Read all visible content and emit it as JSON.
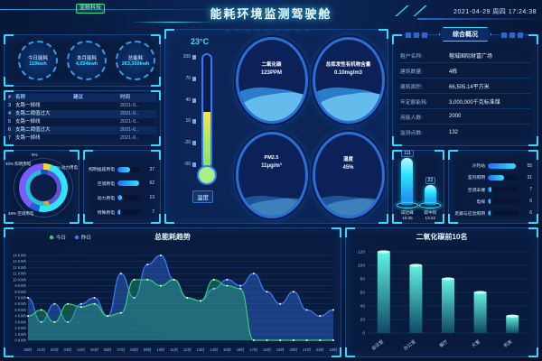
{
  "header": {
    "badge": "蓝鲸科技",
    "title": "能耗环境监测驾驶舱",
    "datetime": "2021-04-29 周四 17:24:38"
  },
  "colors": {
    "accent": "#2ee5ff",
    "green": "#2fd36a",
    "blue": "#3f7bff",
    "yellow": "#f2d62c",
    "purple": "#7b5bff",
    "panel_border": "#16437f",
    "background": "#081a3f"
  },
  "stats": {
    "items": [
      {
        "label": "今日能耗",
        "value": "119kwh"
      },
      {
        "label": "本月能耗",
        "value": "4,654kwh"
      },
      {
        "label": "总能耗",
        "value": "263,359kwh"
      }
    ]
  },
  "alarm_table": {
    "columns": [
      "#",
      "名称",
      "建议",
      "时间"
    ],
    "rows": [
      {
        "no": "3",
        "name": "支路一掉线",
        "advice": "",
        "time": "2021-0.."
      },
      {
        "no": "4",
        "name": "支路二阈值过大",
        "advice": "",
        "time": "2021-0.."
      },
      {
        "no": "5",
        "name": "支路一掉线",
        "advice": "",
        "time": "2021-0.."
      },
      {
        "no": "6",
        "name": "支路二阈值过大",
        "advice": "",
        "time": "2021-0.."
      },
      {
        "no": "7",
        "name": "支路一掉线",
        "advice": "",
        "time": "2021-0.."
      }
    ]
  },
  "donut": {
    "segments": [
      {
        "label": "特殊用电",
        "pct": 5,
        "color": "#f2d62c"
      },
      {
        "label": "空调用电",
        "pct": 48,
        "color": "#2ee5ff"
      },
      {
        "label": "动力用电",
        "pct": 7,
        "color": "#1f5fd6"
      },
      {
        "label": "照明用电",
        "pct": 40,
        "color": "#7b5bff"
      }
    ],
    "callouts": [
      "5%",
      "7% 动力用电",
      "48% 空调用电",
      "40% 照明用电"
    ]
  },
  "usage_bars": {
    "items": [
      {
        "label": "照明插座用电",
        "value": 37
      },
      {
        "label": "空调用电",
        "value": 62
      },
      {
        "label": "动力用电",
        "value": 13
      },
      {
        "label": "特殊用电",
        "value": 7
      }
    ],
    "max": 68
  },
  "env": {
    "thermometer": {
      "reading": "23°C",
      "caption": "温度",
      "ticks": [
        "100",
        "70",
        "40",
        "10",
        "-20",
        "-50"
      ],
      "fill_pct": 49
    },
    "gauges": [
      {
        "label": "二氧化碳",
        "value": "123PPM"
      },
      {
        "label": "总挥发性有机物含量",
        "value": "0.10mg/m3"
      },
      {
        "label": "PM2.5",
        "value": "11μg/m³"
      },
      {
        "label": "湿度",
        "value": "45%"
      }
    ]
  },
  "overview": {
    "title": "综合概况",
    "rows": [
      {
        "label": "租户名称:",
        "value": "榕城国际财富广场"
      },
      {
        "label": "建筑数量:",
        "value": "4栋"
      },
      {
        "label": "建筑面积:",
        "value": "66,505.14平方米"
      },
      {
        "label": "年定额能耗:",
        "value": "3,000,000千克标准煤"
      },
      {
        "label": "用能人数:",
        "value": "2000"
      },
      {
        "label": "监测点数:",
        "value": "132"
      }
    ]
  },
  "carbon": {
    "items": [
      {
        "value": "111",
        "name": "碳达峰",
        "time": "10:35",
        "height": 52
      },
      {
        "value": "23",
        "name": "碳中和",
        "time": "13:22",
        "height": 22
      }
    ]
  },
  "branch_bars": {
    "items": [
      {
        "label": "冷热站",
        "value": 55
      },
      {
        "label": "室内照明",
        "value": 31
      },
      {
        "label": "空调末端",
        "value": 7
      },
      {
        "label": "电梯",
        "value": 6
      },
      {
        "label": "走廊与应急照明",
        "value": 6
      }
    ],
    "max": 60
  },
  "chart_data": [
    {
      "type": "area-line",
      "title": "总能耗趋势",
      "x": [
        "00时",
        "01时",
        "02时",
        "03时",
        "04时",
        "05时",
        "06时",
        "07时",
        "08时",
        "09时",
        "10时",
        "11时",
        "12时",
        "13时",
        "14时",
        "15时",
        "16时",
        "17时",
        "18时",
        "19时",
        "20时",
        "21时",
        "22时",
        "23时"
      ],
      "ylabel_unit": "KWh",
      "ylim": [
        0,
        14
      ],
      "ytick_step": 1,
      "grid": true,
      "legend_position": "top-left",
      "series": [
        {
          "name": "今日",
          "color": "#2fd36a",
          "fill": "rgba(47,211,106,0.30)",
          "values": [
            4,
            5,
            3,
            6,
            5.5,
            6,
            4,
            4.5,
            10,
            10,
            9,
            10,
            7,
            6.5,
            10,
            9,
            8.5,
            0,
            0,
            0,
            0,
            0,
            0,
            0
          ]
        },
        {
          "name": "昨日",
          "color": "#3f7bff",
          "fill": "rgba(63,123,255,0.35)",
          "values": [
            7,
            3,
            6,
            3,
            6,
            7,
            4,
            11,
            7,
            12.5,
            14,
            10,
            7,
            6.5,
            8.5,
            10,
            9,
            11,
            8,
            6,
            8,
            5,
            4,
            5
          ]
        }
      ]
    },
    {
      "type": "bar",
      "title": "二氧化碳前10名",
      "categories": [
        "会议室",
        "办公室",
        "餐厅",
        "大堂",
        "机房"
      ],
      "values": [
        120,
        100,
        80,
        60,
        25
      ],
      "ylim": [
        0,
        120
      ],
      "ytick_step": 20,
      "bar_color_top": "#62f2e2",
      "bar_color_bottom": "#0e4a66",
      "grid": true
    }
  ]
}
